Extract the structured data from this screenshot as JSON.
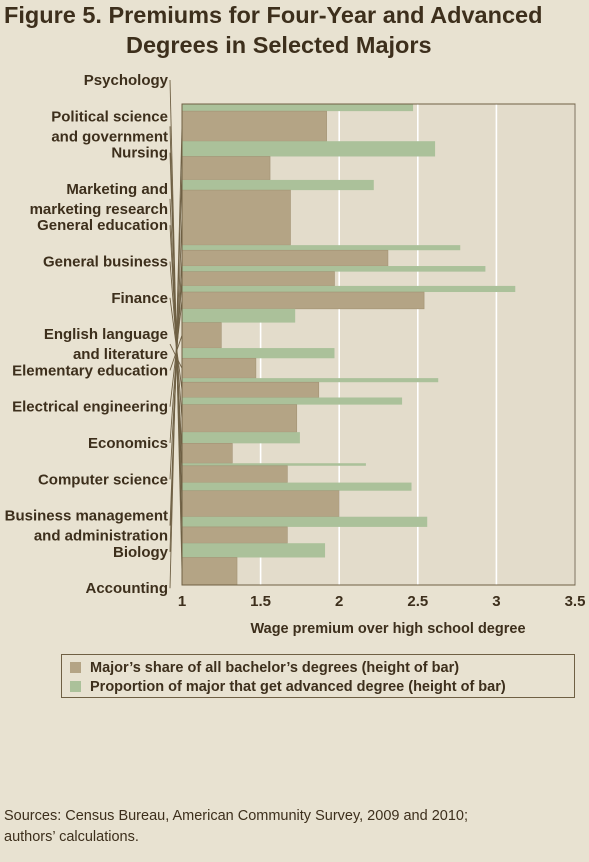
{
  "title_line1": "Figure 5.  Premiums for Four-Year and Advanced",
  "title_line2": "Degrees in Selected Majors",
  "source_line1": "Sources: Census Bureau, American Community Survey, 2009 and 2010;",
  "source_line2": "authors’ calculations.",
  "colors": {
    "background": "#e8e2d1",
    "plot_background": "#e3dccb",
    "bachelor_bar": "#b4a485",
    "advanced_bar": "#abc19a",
    "axis": "#6f6044",
    "text": "#3d2f1c"
  },
  "chart_data": {
    "type": "bar",
    "orientation": "horizontal-variable-height",
    "xlabel": "Wage premium over high school degree",
    "xlim": [
      1,
      3.5
    ],
    "xticks": [
      "1",
      "1.5",
      "2",
      "2.5",
      "3",
      "3.5"
    ],
    "grid": "vertical lines",
    "legend_placement": "bottom",
    "legend": [
      "Major’s share of all bachelor’s degrees (height of bar)",
      "Proportion of major that get advanced degree (height of bar)"
    ],
    "categories": [
      {
        "label": [
          "Psychology"
        ],
        "bachelor_premium": 1.35,
        "advanced_premium": 1.91,
        "bachelor_share": 2.7,
        "advanced_share": 1.4
      },
      {
        "label": [
          "Political science",
          "and government"
        ],
        "bachelor_premium": 1.67,
        "advanced_premium": 2.56,
        "bachelor_share": 1.6,
        "advanced_share": 1.0
      },
      {
        "label": [
          "Nursing"
        ],
        "bachelor_premium": 2.0,
        "advanced_premium": 2.46,
        "bachelor_share": 2.55,
        "advanced_share": 0.8
      },
      {
        "label": [
          "Marketing and",
          "marketing research"
        ],
        "bachelor_premium": 1.67,
        "advanced_premium": 2.17,
        "bachelor_share": 1.65,
        "advanced_share": 0.25
      },
      {
        "label": [
          "General education"
        ],
        "bachelor_premium": 1.32,
        "advanced_premium": 1.75,
        "bachelor_share": 1.95,
        "advanced_share": 1.1
      },
      {
        "label": [
          "General business"
        ],
        "bachelor_premium": 1.73,
        "advanced_premium": 2.4,
        "bachelor_share": 2.7,
        "advanced_share": 0.7
      },
      {
        "label": [
          "Finance"
        ],
        "bachelor_premium": 1.87,
        "advanced_premium": 2.63,
        "bachelor_share": 1.5,
        "advanced_share": 0.4
      },
      {
        "label": [
          "English language",
          "and literature"
        ],
        "bachelor_premium": 1.47,
        "advanced_premium": 1.97,
        "bachelor_share": 1.95,
        "advanced_share": 1.0
      },
      {
        "label": [
          "Elementary education"
        ],
        "bachelor_premium": 1.25,
        "advanced_premium": 1.72,
        "bachelor_share": 2.5,
        "advanced_share": 1.35
      },
      {
        "label": [
          "Electrical engineering"
        ],
        "bachelor_premium": 2.54,
        "advanced_premium": 3.12,
        "bachelor_share": 1.65,
        "advanced_share": 0.6
      },
      {
        "label": [
          "Economics"
        ],
        "bachelor_premium": 1.97,
        "advanced_premium": 2.93,
        "bachelor_share": 1.4,
        "advanced_share": 0.55
      },
      {
        "label": [
          "Computer science"
        ],
        "bachelor_premium": 2.31,
        "advanced_premium": 2.77,
        "bachelor_share": 1.55,
        "advanced_share": 0.5
      },
      {
        "label": [
          "Business management",
          "and administration"
        ],
        "bachelor_premium": 1.69,
        "advanced_premium": 2.22,
        "bachelor_share": 5.4,
        "advanced_share": 1.0
      },
      {
        "label": [
          "Biology"
        ],
        "bachelor_premium": 1.56,
        "advanced_premium": 2.61,
        "bachelor_share": 2.3,
        "advanced_share": 1.5
      },
      {
        "label": [
          "Accounting"
        ],
        "bachelor_premium": 1.92,
        "advanced_premium": 2.47,
        "bachelor_share": 2.95,
        "advanced_share": 0.7
      }
    ]
  }
}
